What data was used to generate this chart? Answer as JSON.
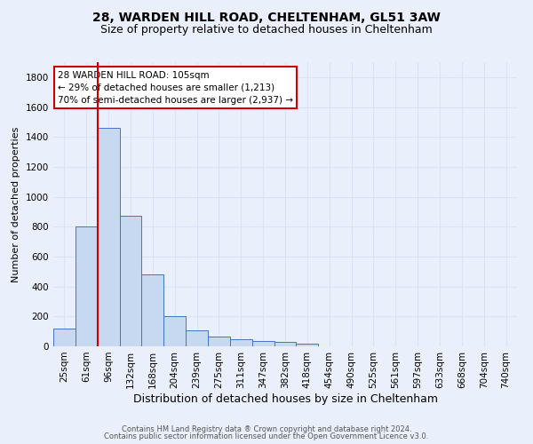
{
  "title1": "28, WARDEN HILL ROAD, CHELTENHAM, GL51 3AW",
  "title2": "Size of property relative to detached houses in Cheltenham",
  "xlabel": "Distribution of detached houses by size in Cheltenham",
  "ylabel": "Number of detached properties",
  "footer1": "Contains HM Land Registry data ® Crown copyright and database right 2024.",
  "footer2": "Contains public sector information licensed under the Open Government Licence v3.0.",
  "annotation_line1": "28 WARDEN HILL ROAD: 105sqm",
  "annotation_line2": "← 29% of detached houses are smaller (1,213)",
  "annotation_line3": "70% of semi-detached houses are larger (2,937) →",
  "bar_labels": [
    "25sqm",
    "61sqm",
    "96sqm",
    "132sqm",
    "168sqm",
    "204sqm",
    "239sqm",
    "275sqm",
    "311sqm",
    "347sqm",
    "382sqm",
    "418sqm",
    "454sqm",
    "490sqm",
    "525sqm",
    "561sqm",
    "597sqm",
    "633sqm",
    "668sqm",
    "704sqm",
    "740sqm"
  ],
  "bar_values": [
    120,
    800,
    1460,
    870,
    480,
    200,
    105,
    65,
    50,
    35,
    28,
    20,
    0,
    0,
    0,
    0,
    0,
    0,
    0,
    0,
    0
  ],
  "bar_color": "#c6d9f0",
  "bar_edge_color": "#4472c4",
  "background_color": "#eaf0fb",
  "grid_color": "#d8e4f5",
  "red_line_color": "#cc0000",
  "annotation_box_color": "#ffffff",
  "annotation_box_edge": "#cc0000",
  "ylim": [
    0,
    1900
  ],
  "yticks": [
    0,
    200,
    400,
    600,
    800,
    1000,
    1200,
    1400,
    1600,
    1800
  ],
  "title1_fontsize": 10,
  "title2_fontsize": 9,
  "xlabel_fontsize": 9,
  "ylabel_fontsize": 8,
  "tick_fontsize": 7.5,
  "footer_fontsize": 6,
  "ann_fontsize": 7.5
}
